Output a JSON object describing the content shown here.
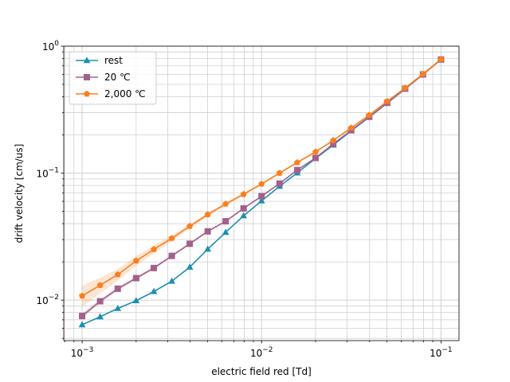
{
  "chart_data": {
    "type": "line",
    "xscale": "log",
    "yscale": "log",
    "xlabel": "electric field red [Td]",
    "ylabel": "drift velocity [cm/us]",
    "xlim": [
      0.00079,
      0.126
    ],
    "ylim": [
      0.0048,
      1.0
    ],
    "grid": true,
    "legend_loc": "upper-left",
    "x_ticks": [
      {
        "value": 0.001,
        "base": "10",
        "exp": "−3"
      },
      {
        "value": 0.01,
        "base": "10",
        "exp": "−2"
      },
      {
        "value": 0.1,
        "base": "10",
        "exp": "−1"
      }
    ],
    "y_ticks": [
      {
        "value": 0.01,
        "base": "10",
        "exp": "−2"
      },
      {
        "value": 0.1,
        "base": "10",
        "exp": "−1"
      },
      {
        "value": 1,
        "base": "10",
        "exp": "0"
      }
    ],
    "x": [
      0.001,
      0.00126,
      0.00158,
      0.002,
      0.00251,
      0.00316,
      0.00398,
      0.00501,
      0.00631,
      0.00794,
      0.01,
      0.0126,
      0.0158,
      0.02,
      0.0251,
      0.0316,
      0.0398,
      0.0501,
      0.0631,
      0.0794,
      0.1
    ],
    "series": [
      {
        "name": "rest",
        "color": "#1a8fb0",
        "marker": "triangle",
        "values": [
          0.0064,
          0.0074,
          0.0086,
          0.0099,
          0.0117,
          0.0141,
          0.0182,
          0.0252,
          0.0342,
          0.0462,
          0.0605,
          0.0788,
          0.1005,
          0.1305,
          0.1665,
          0.2155,
          0.2755,
          0.3555,
          0.4605,
          0.598,
          0.785
        ]
      },
      {
        "name": "20 ℃",
        "color": "#a2608c",
        "marker": "square",
        "values": [
          0.0075,
          0.0098,
          0.0123,
          0.0149,
          0.0179,
          0.0223,
          0.0278,
          0.0348,
          0.0418,
          0.0528,
          0.0658,
          0.0828,
          0.1058,
          0.1318,
          0.1698,
          0.2178,
          0.2778,
          0.3578,
          0.4628,
          0.599,
          0.785
        ],
        "band_lower": [
          0.0072,
          0.0094,
          0.0119,
          0.0145,
          0.0175,
          0.0219,
          0.0273,
          0.0343,
          0.0413,
          0.0522,
          0.065,
          0.082,
          0.1048,
          0.1305,
          0.168,
          0.216,
          0.276,
          0.356,
          0.46,
          0.596,
          0.78
        ],
        "band_upper": [
          0.0079,
          0.0102,
          0.0127,
          0.0153,
          0.0183,
          0.0227,
          0.0283,
          0.0353,
          0.0423,
          0.0535,
          0.0666,
          0.0836,
          0.1068,
          0.133,
          0.1715,
          0.2195,
          0.2795,
          0.3595,
          0.4655,
          0.602,
          0.79
        ]
      },
      {
        "name": "2,000 ℃",
        "color": "#f97f1e",
        "marker": "pentagon",
        "values": [
          0.0108,
          0.0131,
          0.0159,
          0.0204,
          0.0251,
          0.0307,
          0.0382,
          0.0472,
          0.0572,
          0.0682,
          0.0822,
          0.1002,
          0.1212,
          0.1472,
          0.1812,
          0.2272,
          0.2862,
          0.3682,
          0.4682,
          0.604,
          0.788
        ],
        "band_lower": [
          0.0088,
          0.0113,
          0.0142,
          0.0186,
          0.0233,
          0.0291,
          0.0366,
          0.0456,
          0.0557,
          0.0667,
          0.0807,
          0.0987,
          0.1192,
          0.1447,
          0.1782,
          0.2242,
          0.2832,
          0.3647,
          0.4652,
          0.6,
          0.783
        ],
        "band_upper": [
          0.013,
          0.015,
          0.0176,
          0.0222,
          0.0269,
          0.0323,
          0.0398,
          0.0488,
          0.0587,
          0.0697,
          0.0837,
          0.1017,
          0.1232,
          0.1497,
          0.1842,
          0.2302,
          0.2892,
          0.3717,
          0.4712,
          0.608,
          0.793
        ]
      }
    ]
  }
}
